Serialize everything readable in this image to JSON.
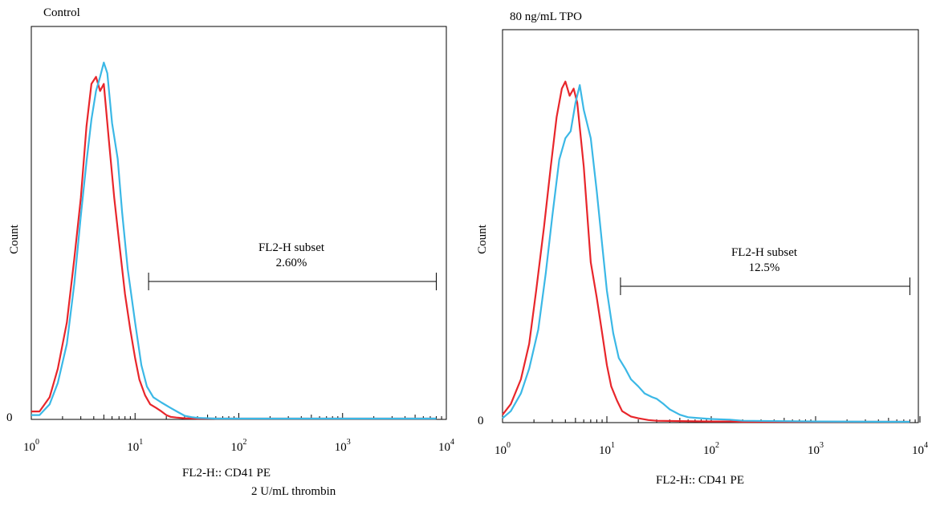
{
  "figure": {
    "footnote": "2 U/mL thrombin"
  },
  "chart_data": [
    {
      "type": "line",
      "title": "Control",
      "xlabel": "FL2-H:: CD41 PE",
      "ylabel": "Count",
      "x_scale": "log",
      "xlim": [
        1,
        10000
      ],
      "x_tick_labels": [
        "10^0",
        "10^1",
        "10^2",
        "10^3",
        "10^4"
      ],
      "y_tick_labels": [
        "0"
      ],
      "gate": {
        "label": "FL2-H subset",
        "value": "2.60%",
        "range": [
          13.5,
          8000
        ]
      },
      "colors": {
        "series1": "#e8262b",
        "series2": "#3bb8e6"
      },
      "series": [
        {
          "x": [
            1,
            1.2,
            1.5,
            1.8,
            2.2,
            2.6,
            3,
            3.4,
            3.8,
            4.2,
            4.6,
            5,
            5.6,
            6.3,
            7,
            8,
            9,
            10,
            11,
            12.5,
            14,
            16,
            18,
            20,
            22,
            25,
            30,
            40,
            60,
            100,
            1000,
            8000
          ],
          "y": [
            0.02,
            0.02,
            0.06,
            0.14,
            0.27,
            0.45,
            0.62,
            0.82,
            0.94,
            0.96,
            0.92,
            0.94,
            0.78,
            0.62,
            0.5,
            0.35,
            0.25,
            0.17,
            0.11,
            0.065,
            0.04,
            0.03,
            0.02,
            0.01,
            0.005,
            0.003,
            0.001,
            0,
            0,
            0,
            0,
            0
          ]
        },
        {
          "x": [
            1,
            1.2,
            1.5,
            1.8,
            2.2,
            2.6,
            3,
            3.4,
            3.8,
            4.2,
            4.6,
            5,
            5.4,
            6,
            6.8,
            7.5,
            8.5,
            10,
            11.5,
            13,
            15,
            18,
            22,
            26,
            30,
            35,
            40,
            60,
            100,
            1000,
            8000
          ],
          "y": [
            0.01,
            0.01,
            0.04,
            0.1,
            0.21,
            0.38,
            0.57,
            0.72,
            0.84,
            0.92,
            0.96,
            1,
            0.97,
            0.83,
            0.73,
            0.58,
            0.42,
            0.27,
            0.15,
            0.09,
            0.06,
            0.045,
            0.03,
            0.018,
            0.008,
            0.004,
            0.002,
            0,
            0,
            0,
            0
          ]
        }
      ]
    },
    {
      "type": "line",
      "title": "80 ng/mL TPO",
      "xlabel": "FL2-H:: CD41 PE",
      "ylabel": "Count",
      "x_scale": "log",
      "xlim": [
        1,
        10000
      ],
      "x_tick_labels": [
        "10^0",
        "10^1",
        "10^2",
        "10^3",
        "10^4"
      ],
      "y_tick_labels": [
        "0"
      ],
      "gate": {
        "label": "FL2-H subset",
        "value": "12.5%",
        "range": [
          13.5,
          8000
        ]
      },
      "colors": {
        "series1": "#e8262b",
        "series2": "#3bb8e6"
      },
      "series": [
        {
          "x": [
            1,
            1.2,
            1.5,
            1.8,
            2.1,
            2.5,
            2.9,
            3.3,
            3.7,
            4,
            4.4,
            4.8,
            5.2,
            6,
            7,
            8,
            9,
            10,
            11,
            12.5,
            14,
            17,
            20,
            25,
            30,
            50,
            100,
            150,
            200,
            1000,
            8000
          ],
          "y": [
            0.02,
            0.05,
            0.12,
            0.22,
            0.37,
            0.55,
            0.72,
            0.86,
            0.94,
            0.96,
            0.92,
            0.94,
            0.9,
            0.72,
            0.45,
            0.35,
            0.25,
            0.16,
            0.1,
            0.06,
            0.03,
            0.015,
            0.01,
            0.005,
            0.003,
            0.002,
            0.001,
            0.001,
            0,
            0,
            0
          ]
        },
        {
          "x": [
            1,
            1.2,
            1.5,
            1.8,
            2.2,
            2.6,
            3,
            3.5,
            4,
            4.5,
            5,
            5.5,
            6,
            7,
            8,
            9,
            10,
            11.5,
            13,
            15,
            17,
            20,
            23,
            27,
            30,
            35,
            40,
            50,
            60,
            80,
            100,
            150,
            200,
            1000,
            8000
          ],
          "y": [
            0.01,
            0.03,
            0.08,
            0.15,
            0.26,
            0.42,
            0.58,
            0.74,
            0.8,
            0.82,
            0.9,
            0.95,
            0.88,
            0.8,
            0.65,
            0.5,
            0.37,
            0.25,
            0.18,
            0.15,
            0.12,
            0.1,
            0.08,
            0.07,
            0.065,
            0.05,
            0.035,
            0.02,
            0.013,
            0.01,
            0.008,
            0.006,
            0.003,
            0.001,
            0
          ]
        }
      ]
    }
  ]
}
